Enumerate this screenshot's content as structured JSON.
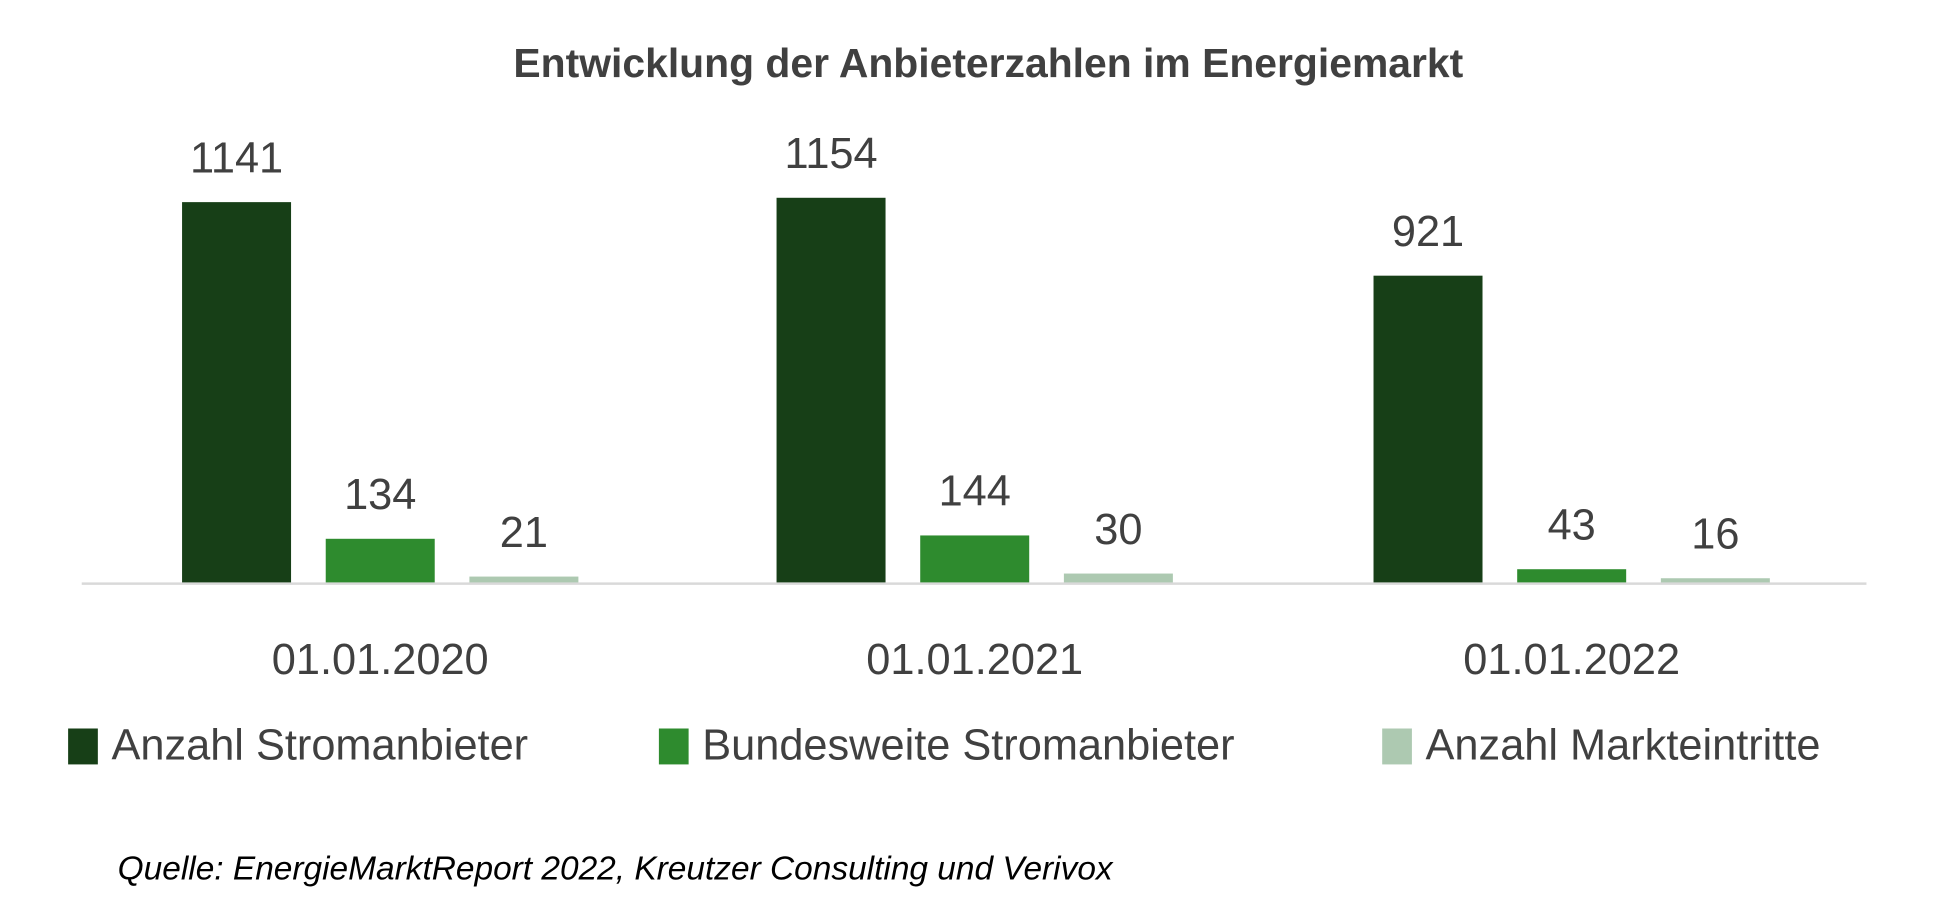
{
  "chart_data": {
    "type": "bar",
    "title": "Entwicklung der Anbieterzahlen im Energiemarkt",
    "categories": [
      "01.01.2020",
      "01.01.2021",
      "01.01.2022"
    ],
    "series": [
      {
        "name": "Anzahl Stromanbieter",
        "values": [
          1141,
          1154,
          921
        ],
        "color": "#173f17"
      },
      {
        "name": "Bundesweite Stromanbieter",
        "values": [
          134,
          144,
          43
        ],
        "color": "#2e8b2e"
      },
      {
        "name": "Anzahl Markteintritte",
        "values": [
          21,
          30,
          16
        ],
        "color": "#adc9b1"
      }
    ],
    "xlabel": "",
    "ylabel": "",
    "ylim": [
      0,
      1154
    ],
    "grid": false,
    "legend": "bottom",
    "data_labels": true,
    "source": "Quelle: EnergieMarktReport 2022, Kreutzer Consulting und Verivox"
  }
}
